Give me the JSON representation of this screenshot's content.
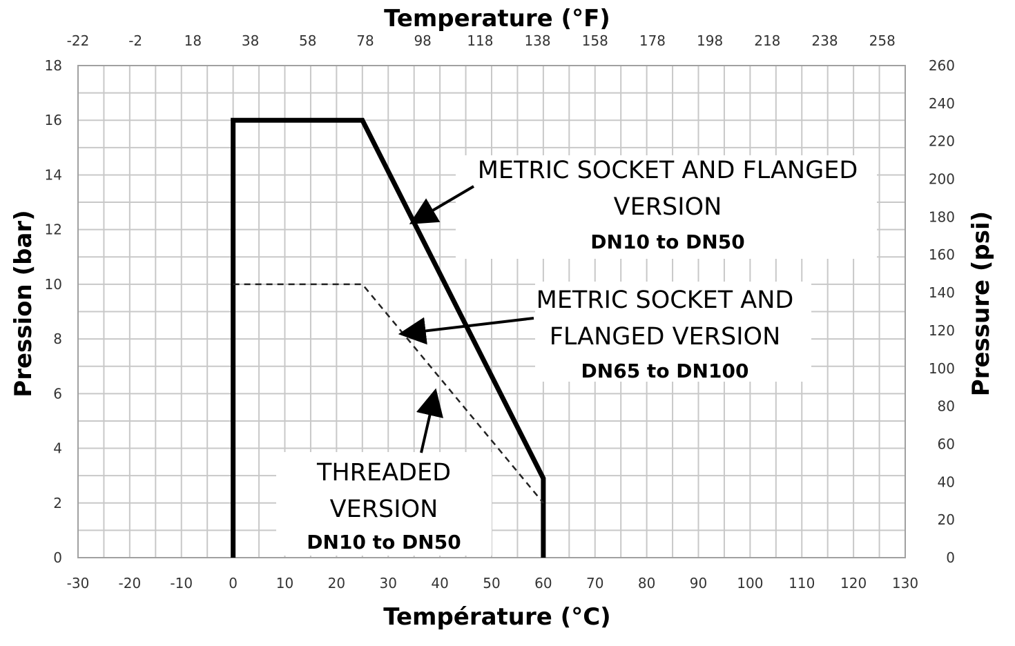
{
  "chart_data": {
    "type": "line",
    "xlabel": "Température (°C)",
    "x2label": "Temperature (°F)",
    "ylabel": "Pression (bar)",
    "y2label": "Pressure (psi)",
    "xlim": [
      -30,
      130
    ],
    "ylim": [
      0,
      18
    ],
    "y2lim": [
      0,
      260
    ],
    "x_ticks": [
      -30,
      -20,
      -10,
      0,
      10,
      20,
      30,
      40,
      50,
      60,
      70,
      80,
      90,
      100,
      110,
      120,
      130
    ],
    "y_ticks": [
      0,
      2,
      4,
      6,
      8,
      10,
      12,
      14,
      16,
      18
    ],
    "x2_ticks": [
      -22,
      -2,
      18,
      38,
      58,
      78,
      98,
      118,
      138,
      158,
      178,
      198,
      218,
      238,
      258
    ],
    "y2_ticks": [
      0,
      20,
      40,
      60,
      80,
      100,
      120,
      140,
      160,
      180,
      200,
      220,
      240,
      260
    ],
    "grid": true,
    "series": [
      {
        "style": "solid",
        "points": [
          [
            0,
            0
          ],
          [
            0,
            16
          ],
          [
            25,
            16
          ],
          [
            60,
            2.9
          ],
          [
            60,
            0
          ]
        ]
      },
      {
        "style": "dashed",
        "points": [
          [
            0,
            10
          ],
          [
            25,
            10
          ],
          [
            60,
            2
          ]
        ]
      }
    ],
    "annotations": [
      {
        "lines": [
          "METRIC SOCKET AND FLANGED",
          "VERSION"
        ],
        "bold": "DN10 to DN50",
        "arrow_to": [
          35,
          12.3
        ]
      },
      {
        "lines": [
          "METRIC SOCKET AND",
          "FLANGED VERSION"
        ],
        "bold": "DN65 to DN100",
        "arrow_to": [
          33,
          8.2
        ]
      },
      {
        "lines": [
          "THREADED",
          "VERSION"
        ],
        "bold": "DN10 to DN50",
        "arrow_to": [
          39,
          6
        ]
      }
    ]
  }
}
